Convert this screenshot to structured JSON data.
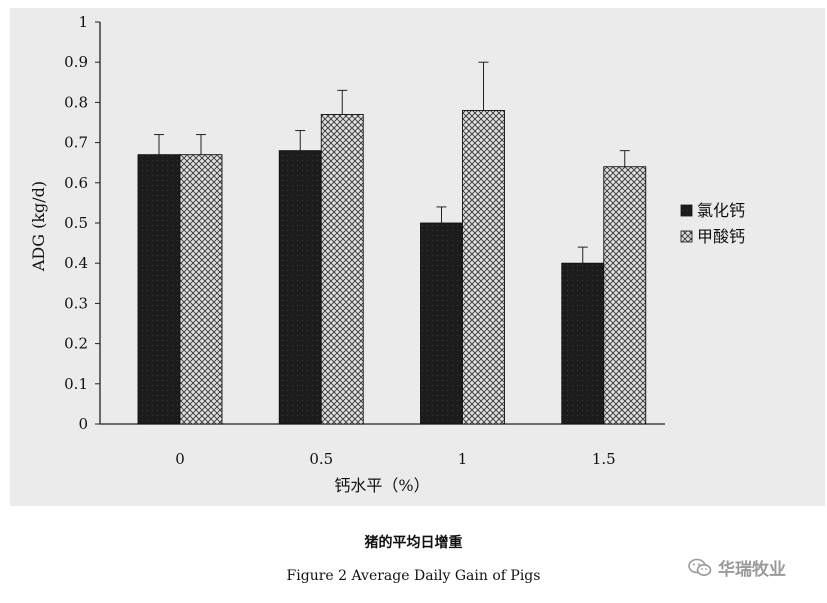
{
  "chart_data": {
    "type": "bar",
    "title": "",
    "xlabel": "钙水平（%）",
    "ylabel": "ADG (kg/d)",
    "categories": [
      "0",
      "0.5",
      "1",
      "1.5"
    ],
    "ylim": [
      0,
      1
    ],
    "yticks": [
      "0",
      "0.1",
      "0.2",
      "0.3",
      "0.4",
      "0.5",
      "0.6",
      "0.7",
      "0.8",
      "0.9",
      "1"
    ],
    "grid": false,
    "legend_position": "right",
    "series": [
      {
        "name": "氯化钙",
        "values": [
          0.67,
          0.68,
          0.5,
          0.4
        ],
        "errors": [
          0.05,
          0.05,
          0.04,
          0.04
        ],
        "fill": "#1c1c1c",
        "pattern": "solid-dark"
      },
      {
        "name": "甲酸钙",
        "values": [
          0.67,
          0.77,
          0.78,
          0.64
        ],
        "errors": [
          0.05,
          0.06,
          0.12,
          0.04
        ],
        "fill": "#e0e0e0",
        "pattern": "crosshatch"
      }
    ]
  },
  "caption": {
    "chinese": "猪的平均日增重",
    "english": "Figure 2 Average Daily Gain of Pigs"
  },
  "watermark": {
    "text": "华瑞牧业",
    "icon": "wechat-icon"
  },
  "colors": {
    "panel_background": "#ebebeb",
    "axis": "#222222"
  }
}
